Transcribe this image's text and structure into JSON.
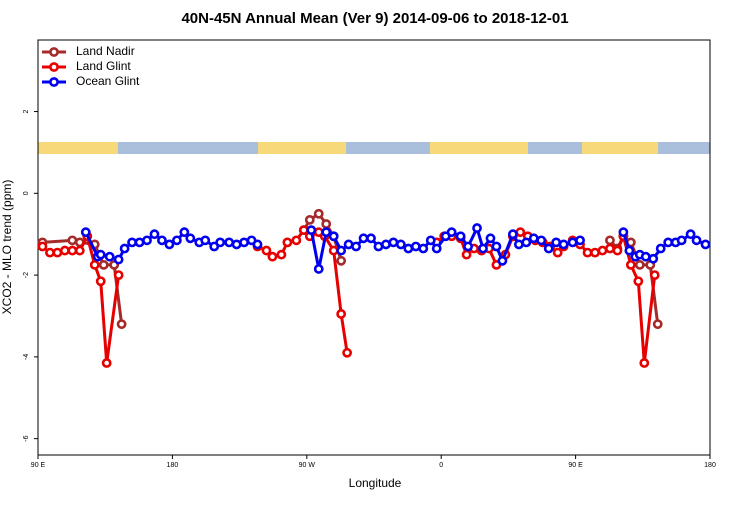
{
  "chart_data": {
    "type": "line",
    "title": "40N-45N Annual Mean (Ver 9)   2014-09-06 to 2018-12-01",
    "x_label": "Longitude",
    "y_label": "XCO2 - MLO trend (ppm)",
    "xlim": [
      90,
      540
    ],
    "xticks": [
      {
        "value": 90,
        "label": "90 E"
      },
      {
        "value": 180,
        "label": "180"
      },
      {
        "value": 270,
        "label": "90 W"
      },
      {
        "value": 360,
        "label": "0"
      },
      {
        "value": 450,
        "label": "90 E"
      },
      {
        "value": 540,
        "label": "180"
      }
    ],
    "ylim": [
      -6.4,
      3.75
    ],
    "yticks": [
      -6,
      -4,
      -2,
      0,
      2
    ],
    "legend": "top-left",
    "series": [
      {
        "name": "Land Nadir",
        "color": "#a52a2a",
        "x": [
          93,
          113,
          118,
          128,
          134,
          141,
          146,
          null,
          268,
          272,
          278,
          283,
          288,
          293,
          null,
          473,
          478,
          482,
          487,
          493,
          500,
          505
        ],
        "values": [
          -1.2,
          -1.15,
          -1.2,
          -1.25,
          -1.75,
          -1.75,
          -3.2,
          null,
          -0.9,
          -0.65,
          -0.5,
          -0.75,
          -1.05,
          -1.65,
          null,
          -1.15,
          -1.35,
          -1.05,
          -1.2,
          -1.75,
          -1.75,
          -3.2
        ]
      },
      {
        "name": "Land Glint",
        "color": "#e60000",
        "x": [
          93,
          98,
          103,
          108,
          113,
          118,
          123,
          128,
          132,
          136,
          144,
          null,
          237,
          243,
          247,
          253,
          257,
          263,
          268,
          272,
          278,
          282,
          288,
          293,
          297,
          null,
          357,
          362,
          367,
          373,
          377,
          382,
          387,
          392,
          397,
          403,
          408,
          413,
          418,
          423,
          428,
          433,
          438,
          442,
          448,
          453,
          458,
          463,
          468,
          473,
          478,
          482,
          487,
          492,
          496,
          503
        ],
        "values": [
          -1.3,
          -1.45,
          -1.45,
          -1.4,
          -1.4,
          -1.4,
          -1.05,
          -1.75,
          -2.15,
          -4.15,
          -2.0,
          null,
          -1.3,
          -1.4,
          -1.55,
          -1.5,
          -1.2,
          -1.15,
          -0.9,
          -1.05,
          -0.95,
          -1.05,
          -1.4,
          -2.95,
          -3.9,
          null,
          -1.2,
          -1.05,
          -1.05,
          -1.1,
          -1.5,
          -1.35,
          -1.4,
          -1.35,
          -1.75,
          -1.5,
          -1.05,
          -0.95,
          -1.05,
          -1.15,
          -1.2,
          -1.3,
          -1.45,
          -1.3,
          -1.15,
          -1.25,
          -1.45,
          -1.45,
          -1.4,
          -1.35,
          -1.4,
          -1.05,
          -1.75,
          -2.15,
          -4.15,
          -2.0
        ]
      },
      {
        "name": "Ocean Glint",
        "color": "#0000ee",
        "x": [
          122,
          130,
          132,
          138,
          144,
          148,
          153,
          158,
          163,
          168,
          173,
          178,
          183,
          188,
          192,
          198,
          202,
          208,
          212,
          218,
          223,
          228,
          233,
          237,
          null,
          273,
          278,
          283,
          288,
          293,
          298,
          303,
          308,
          313,
          318,
          323,
          328,
          333,
          338,
          343,
          348,
          353,
          357,
          363,
          367,
          373,
          378,
          384,
          388,
          393,
          397,
          401,
          408,
          412,
          417,
          422,
          427,
          432,
          437,
          442,
          448,
          453,
          null,
          482,
          486,
          490,
          493,
          497,
          502,
          507,
          512,
          517,
          521,
          527,
          531,
          537
        ],
        "values": [
          -0.95,
          -1.55,
          -1.5,
          -1.55,
          -1.62,
          -1.35,
          -1.2,
          -1.2,
          -1.15,
          -1.0,
          -1.15,
          -1.25,
          -1.15,
          -0.95,
          -1.1,
          -1.2,
          -1.15,
          -1.3,
          -1.2,
          -1.2,
          -1.25,
          -1.2,
          -1.15,
          -1.25,
          null,
          -0.9,
          -1.85,
          -0.95,
          -1.05,
          -1.4,
          -1.25,
          -1.3,
          -1.1,
          -1.1,
          -1.3,
          -1.25,
          -1.2,
          -1.25,
          -1.35,
          -1.3,
          -1.35,
          -1.15,
          -1.35,
          -1.05,
          -0.95,
          -1.05,
          -1.3,
          -0.85,
          -1.35,
          -1.1,
          -1.3,
          -1.65,
          -1.0,
          -1.25,
          -1.2,
          -1.1,
          -1.15,
          -1.35,
          -1.2,
          -1.25,
          -1.2,
          -1.15,
          null,
          -0.95,
          -1.4,
          -1.55,
          -1.5,
          -1.55,
          -1.6,
          -1.35,
          -1.2,
          -1.2,
          -1.15,
          -1.0,
          -1.15,
          -1.25
        ]
      }
    ]
  }
}
